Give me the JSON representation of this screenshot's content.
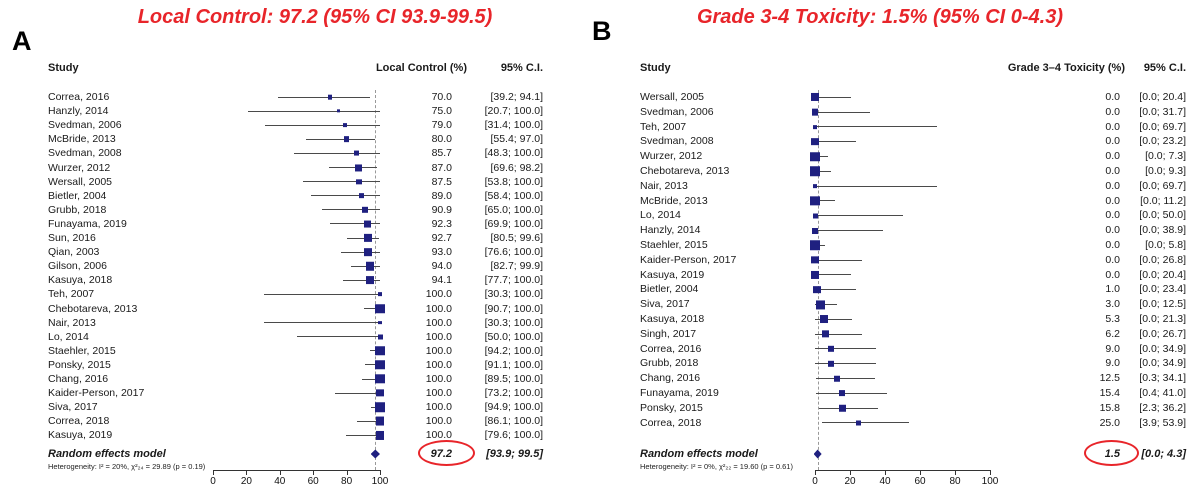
{
  "colors": {
    "title-red": "#e8252a",
    "circle-red": "#e8252a",
    "marker-navy": "#1f2080",
    "ci-line": "#4a4a4a",
    "dashed-line": "#999999"
  },
  "chart_data": [
    {
      "type": "forest",
      "panel_label": "A",
      "title": "Local Control: 97.2 (95% CI 93.9-99.5)",
      "col_headers": {
        "study": "Study",
        "effect": "Local Control (%)",
        "ci": "95% C.I."
      },
      "axis_range": [
        0,
        100
      ],
      "axis_ticks": [
        0,
        20,
        40,
        60,
        80,
        100
      ],
      "studies": [
        {
          "name": "Correa, 2016",
          "effect": 70.0,
          "lo": 39.2,
          "hi": 94.1
        },
        {
          "name": "Hanzly, 2014",
          "effect": 75.0,
          "lo": 20.7,
          "hi": 100.0
        },
        {
          "name": "Svedman, 2006",
          "effect": 79.0,
          "lo": 31.4,
          "hi": 100.0
        },
        {
          "name": "McBride, 2013",
          "effect": 80.0,
          "lo": 55.4,
          "hi": 97.0
        },
        {
          "name": "Svedman, 2008",
          "effect": 85.7,
          "lo": 48.3,
          "hi": 100.0
        },
        {
          "name": "Wurzer, 2012",
          "effect": 87.0,
          "lo": 69.6,
          "hi": 98.2
        },
        {
          "name": "Wersall, 2005",
          "effect": 87.5,
          "lo": 53.8,
          "hi": 100.0
        },
        {
          "name": "Bietler, 2004",
          "effect": 89.0,
          "lo": 58.4,
          "hi": 100.0
        },
        {
          "name": "Grubb, 2018",
          "effect": 90.9,
          "lo": 65.0,
          "hi": 100.0
        },
        {
          "name": "Funayama, 2019",
          "effect": 92.3,
          "lo": 69.9,
          "hi": 100.0
        },
        {
          "name": "Sun, 2016",
          "effect": 92.7,
          "lo": 80.5,
          "hi": 99.6
        },
        {
          "name": "Qian, 2003",
          "effect": 93.0,
          "lo": 76.6,
          "hi": 100.0
        },
        {
          "name": "Gilson, 2006",
          "effect": 94.0,
          "lo": 82.7,
          "hi": 99.9
        },
        {
          "name": "Kasuya, 2018",
          "effect": 94.1,
          "lo": 77.7,
          "hi": 100.0
        },
        {
          "name": "Teh, 2007",
          "effect": 100.0,
          "lo": 30.3,
          "hi": 100.0
        },
        {
          "name": "Chebotareva, 2013",
          "effect": 100.0,
          "lo": 90.7,
          "hi": 100.0
        },
        {
          "name": "Nair, 2013",
          "effect": 100.0,
          "lo": 30.3,
          "hi": 100.0
        },
        {
          "name": "Lo, 2014",
          "effect": 100.0,
          "lo": 50.0,
          "hi": 100.0
        },
        {
          "name": "Staehler, 2015",
          "effect": 100.0,
          "lo": 94.2,
          "hi": 100.0
        },
        {
          "name": "Ponsky, 2015",
          "effect": 100.0,
          "lo": 91.1,
          "hi": 100.0
        },
        {
          "name": "Chang, 2016",
          "effect": 100.0,
          "lo": 89.5,
          "hi": 100.0
        },
        {
          "name": "Kaider-Person, 2017",
          "effect": 100.0,
          "lo": 73.2,
          "hi": 100.0
        },
        {
          "name": "Siva, 2017",
          "effect": 100.0,
          "lo": 94.9,
          "hi": 100.0
        },
        {
          "name": "Correa, 2018",
          "effect": 100.0,
          "lo": 86.1,
          "hi": 100.0
        },
        {
          "name": "Kasuya, 2019",
          "effect": 100.0,
          "lo": 79.6,
          "hi": 100.0
        }
      ],
      "pooled": {
        "label": "Random effects model",
        "effect": 97.2,
        "lo": 93.9,
        "hi": 99.5
      },
      "heterogeneity": "Heterogeneity: I² = 20%, χ²₂₄ = 29.89 (p = 0.19)"
    },
    {
      "type": "forest",
      "panel_label": "B",
      "title": "Grade 3-4 Toxicity: 1.5% (95% CI 0-4.3)",
      "col_headers": {
        "study": "Study",
        "effect": "Grade 3–4 Toxicity (%)",
        "ci": "95% C.I."
      },
      "axis_range": [
        0,
        100
      ],
      "axis_ticks": [
        0,
        20,
        40,
        60,
        80,
        100
      ],
      "studies": [
        {
          "name": "Wersall, 2005",
          "effect": 0.0,
          "lo": 0.0,
          "hi": 20.4
        },
        {
          "name": "Svedman, 2006",
          "effect": 0.0,
          "lo": 0.0,
          "hi": 31.7
        },
        {
          "name": "Teh, 2007",
          "effect": 0.0,
          "lo": 0.0,
          "hi": 69.7
        },
        {
          "name": "Svedman, 2008",
          "effect": 0.0,
          "lo": 0.0,
          "hi": 23.2
        },
        {
          "name": "Wurzer, 2012",
          "effect": 0.0,
          "lo": 0.0,
          "hi": 7.3
        },
        {
          "name": "Chebotareva, 2013",
          "effect": 0.0,
          "lo": 0.0,
          "hi": 9.3
        },
        {
          "name": "Nair, 2013",
          "effect": 0.0,
          "lo": 0.0,
          "hi": 69.7
        },
        {
          "name": "McBride, 2013",
          "effect": 0.0,
          "lo": 0.0,
          "hi": 11.2
        },
        {
          "name": "Lo, 2014",
          "effect": 0.0,
          "lo": 0.0,
          "hi": 50.0
        },
        {
          "name": "Hanzly, 2014",
          "effect": 0.0,
          "lo": 0.0,
          "hi": 38.9
        },
        {
          "name": "Staehler, 2015",
          "effect": 0.0,
          "lo": 0.0,
          "hi": 5.8
        },
        {
          "name": "Kaider-Person, 2017",
          "effect": 0.0,
          "lo": 0.0,
          "hi": 26.8
        },
        {
          "name": "Kasuya, 2019",
          "effect": 0.0,
          "lo": 0.0,
          "hi": 20.4
        },
        {
          "name": "Bietler, 2004",
          "effect": 1.0,
          "lo": 0.0,
          "hi": 23.4
        },
        {
          "name": "Siva, 2017",
          "effect": 3.0,
          "lo": 0.0,
          "hi": 12.5
        },
        {
          "name": "Kasuya, 2018",
          "effect": 5.3,
          "lo": 0.0,
          "hi": 21.3
        },
        {
          "name": "Singh, 2017",
          "effect": 6.2,
          "lo": 0.0,
          "hi": 26.7
        },
        {
          "name": "Correa, 2016",
          "effect": 9.0,
          "lo": 0.0,
          "hi": 34.9
        },
        {
          "name": "Grubb, 2018",
          "effect": 9.0,
          "lo": 0.0,
          "hi": 34.9
        },
        {
          "name": "Chang, 2016",
          "effect": 12.5,
          "lo": 0.3,
          "hi": 34.1
        },
        {
          "name": "Funayama, 2019",
          "effect": 15.4,
          "lo": 0.4,
          "hi": 41.0
        },
        {
          "name": "Ponsky, 2015",
          "effect": 15.8,
          "lo": 2.3,
          "hi": 36.2
        },
        {
          "name": "Correa, 2018",
          "effect": 25.0,
          "lo": 3.9,
          "hi": 53.9
        }
      ],
      "pooled": {
        "label": "Random effects model",
        "effect": 1.5,
        "lo": 0.0,
        "hi": 4.3
      },
      "heterogeneity": "Heterogeneity: I² = 0%, χ²₂₂ = 19.60 (p = 0.61)"
    }
  ]
}
